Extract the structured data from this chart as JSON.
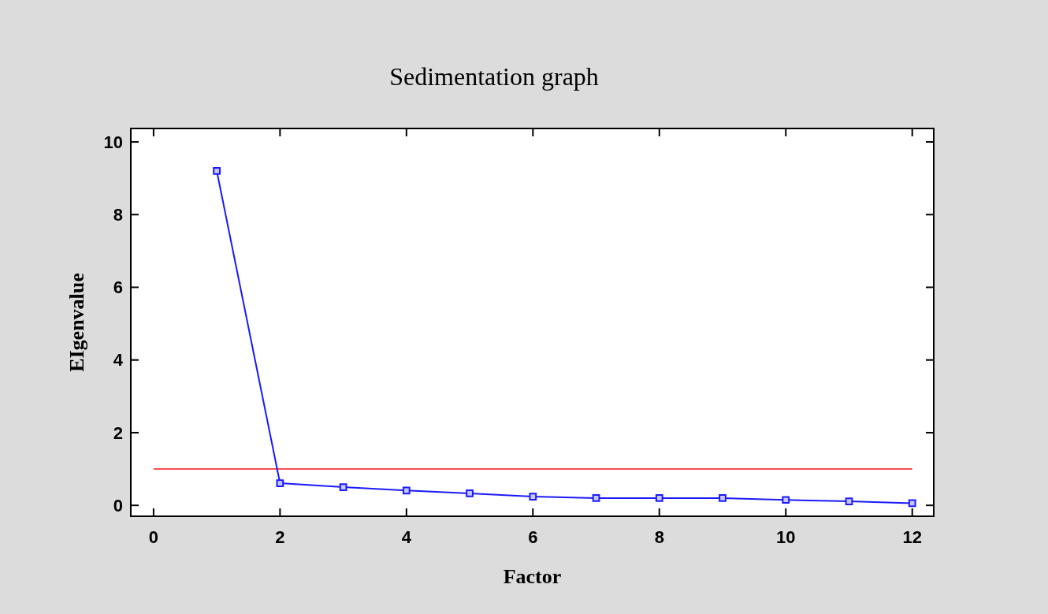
{
  "chart_data": {
    "type": "line",
    "title": "Sedimentation graph",
    "xlabel": "Factor",
    "ylabel": "EIgenvalue",
    "x": [
      1,
      2,
      3,
      4,
      5,
      6,
      7,
      8,
      9,
      10,
      11,
      12
    ],
    "series": [
      {
        "color": "#1a1aff",
        "values": [
          9.2,
          0.61,
          0.5,
          0.41,
          0.33,
          0.24,
          0.2,
          0.2,
          0.2,
          0.15,
          0.11,
          0.06
        ]
      }
    ],
    "marker": "square",
    "line_style": "solid",
    "xlim": [
      -0.36,
      12.34
    ],
    "xticks": [
      0,
      2,
      4,
      6,
      8,
      10,
      12
    ],
    "ylim": [
      -0.3,
      10.37
    ],
    "yticks": [
      0,
      2,
      4,
      6,
      8,
      10
    ],
    "ref_lines": [
      {
        "axis": "y",
        "value": 1,
        "color": "#ff4d4d",
        "line_style": "solid"
      }
    ],
    "grid": false
  }
}
